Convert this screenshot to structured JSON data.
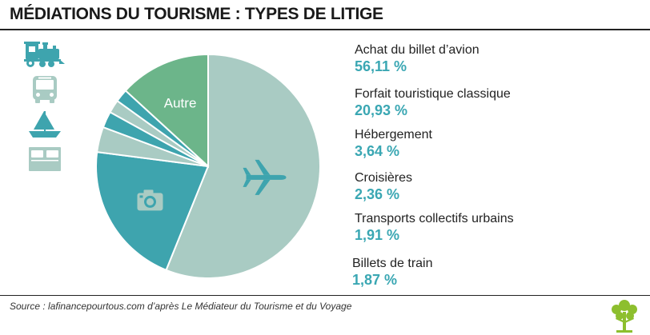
{
  "header": {
    "title": "MÉDIATIONS DU TOURISME : TYPES DE LITIGE"
  },
  "footer": {
    "source": "Source : lafinancepourtous.com d’après Le Médiateur du Tourisme et du Voyage"
  },
  "colors": {
    "value_text": "#3aa7b3",
    "rule": "#222222"
  },
  "chart_data": {
    "type": "pie",
    "start_angle_deg": 0,
    "direction": "clockwise",
    "slices": [
      {
        "label": "Achat du billet d’avion",
        "value": 56.11,
        "display": "56,11 %",
        "color": "#a9cbc3",
        "icon": "airplane-icon"
      },
      {
        "label": "Forfait touristique classique",
        "value": 20.93,
        "display": "20,93 %",
        "color": "#3ea4ae",
        "icon": "camera-icon"
      },
      {
        "label": "Hébergement",
        "value": 3.64,
        "display": "3,64 %",
        "color": "#a9cbc3"
      },
      {
        "label": "Croisières",
        "value": 2.36,
        "display": "2,36 %",
        "color": "#3ea4ae"
      },
      {
        "label": "Transports collectifs urbains",
        "value": 1.91,
        "display": "1,91 %",
        "color": "#a9cbc3"
      },
      {
        "label": "Billets de train",
        "value": 1.87,
        "display": "1,87 %",
        "color": "#3ea4ae"
      },
      {
        "label": "Autre",
        "value": 13.18,
        "color": "#6cb58a",
        "inside_label": "Autre"
      }
    ]
  },
  "side_icons": [
    {
      "icon": "train-icon",
      "color": "#3ea4ae"
    },
    {
      "icon": "bus-icon",
      "color": "#a9cbc3"
    },
    {
      "icon": "sailboat-icon",
      "color": "#3ea4ae"
    },
    {
      "icon": "bed-icon",
      "color": "#a9cbc3"
    }
  ],
  "logo": {
    "icon": "tree-logo-icon",
    "color": "#8dbf2e"
  }
}
